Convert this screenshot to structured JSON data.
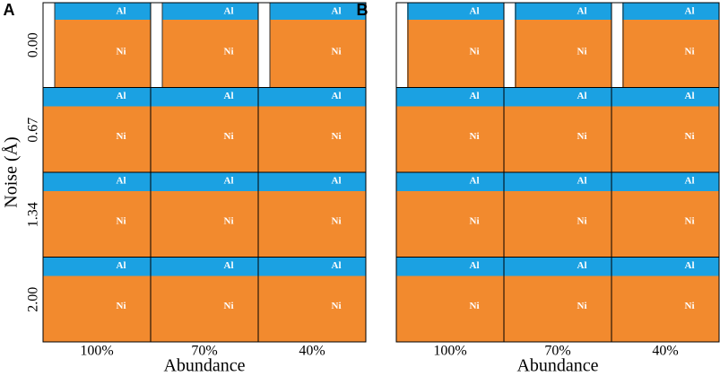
{
  "chart_data": [
    {
      "type": "area",
      "title": "A",
      "ylabel": "Noise (Å)",
      "xlabel": "Abundance",
      "rows": [
        "0.00",
        "0.67",
        "1.34",
        "2.00"
      ],
      "columns": [
        "100%",
        "70%",
        "40%"
      ],
      "series": [
        {
          "name": "Al",
          "color": "#1ba1e2"
        },
        {
          "name": "Ni",
          "color": "#f28a2e"
        }
      ]
    },
    {
      "type": "area",
      "title": "B",
      "xlabel": "Abundance",
      "columns": [
        "100%",
        "70%",
        "40%"
      ],
      "series": [
        {
          "name": "Al",
          "color": "#1ba1e2"
        },
        {
          "name": "Ni",
          "color": "#f28a2e"
        }
      ]
    }
  ]
}
